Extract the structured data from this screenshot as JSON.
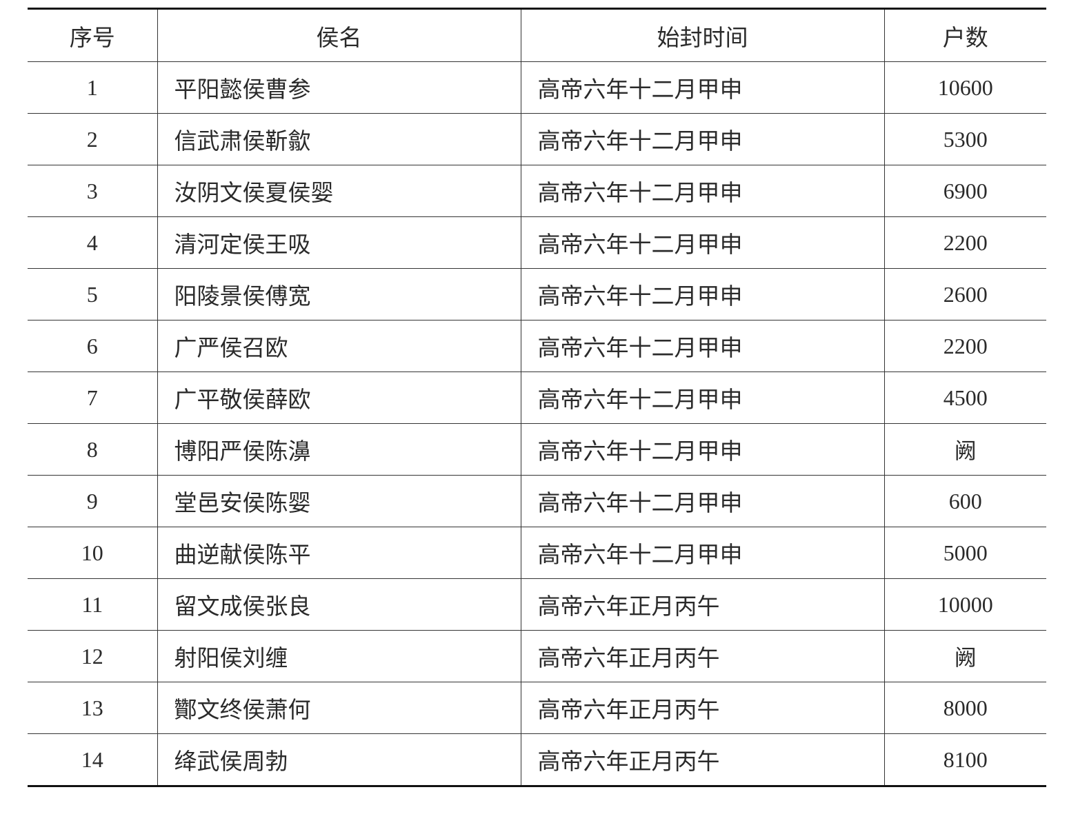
{
  "table": {
    "headers": [
      "序号",
      "侯名",
      "始封时间",
      "户数"
    ],
    "rows": [
      {
        "no": "1",
        "name": "平阳懿侯曹参",
        "time": "高帝六年十二月甲申",
        "households": "10600"
      },
      {
        "no": "2",
        "name": "信武肃侯靳歙",
        "time": "高帝六年十二月甲申",
        "households": "5300"
      },
      {
        "no": "3",
        "name": "汝阴文侯夏侯婴",
        "time": "高帝六年十二月甲申",
        "households": "6900"
      },
      {
        "no": "4",
        "name": "清河定侯王吸",
        "time": "高帝六年十二月甲申",
        "households": "2200"
      },
      {
        "no": "5",
        "name": "阳陵景侯傅宽",
        "time": "高帝六年十二月甲申",
        "households": "2600"
      },
      {
        "no": "6",
        "name": "广严侯召欧",
        "time": "高帝六年十二月甲申",
        "households": "2200"
      },
      {
        "no": "7",
        "name": "广平敬侯薛欧",
        "time": "高帝六年十二月甲申",
        "households": "4500"
      },
      {
        "no": "8",
        "name": "博阳严侯陈濞",
        "time": "高帝六年十二月甲申",
        "households": "阙"
      },
      {
        "no": "9",
        "name": "堂邑安侯陈婴",
        "time": "高帝六年十二月甲申",
        "households": "600"
      },
      {
        "no": "10",
        "name": "曲逆献侯陈平",
        "time": "高帝六年十二月甲申",
        "households": "5000"
      },
      {
        "no": "11",
        "name": "留文成侯张良",
        "time": "高帝六年正月丙午",
        "households": "10000"
      },
      {
        "no": "12",
        "name": "射阳侯刘缠",
        "time": "高帝六年正月丙午",
        "households": "阙"
      },
      {
        "no": "13",
        "name": "酇文终侯萧何",
        "time": "高帝六年正月丙午",
        "households": "8000"
      },
      {
        "no": "14",
        "name": "绛武侯周勃",
        "time": "高帝六年正月丙午",
        "households": "8100"
      }
    ]
  }
}
